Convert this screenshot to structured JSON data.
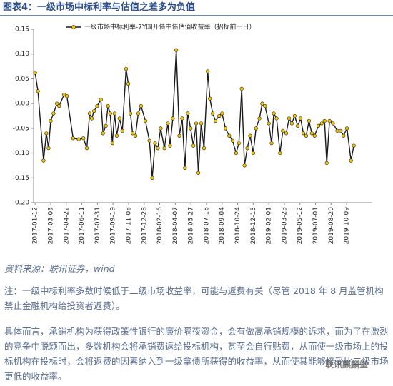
{
  "header": {
    "title": "图表4：一级市场中标利率与估值之差多为负值"
  },
  "chart_data": {
    "type": "line",
    "series": [
      {
        "name": "一级市场中标利率-7Y国开债中债估值收益率（招标前一日）",
        "color": "#1a1a1a",
        "marker_color": "#f5c400",
        "values": [
          0.062,
          0.025,
          -0.115,
          -0.06,
          -0.09,
          -0.035,
          -0.02,
          0.0,
          -0.005,
          0.018,
          0.015,
          -0.07,
          -0.072,
          -0.07,
          -0.09,
          -0.02,
          -0.03,
          -0.015,
          -0.005,
          0.008,
          -0.06,
          -0.045,
          -0.005,
          -0.02,
          -0.08,
          -0.02,
          -0.065,
          -0.03,
          -0.055,
          0.07,
          0.04,
          -0.02,
          -0.06,
          -0.065,
          -0.02,
          -0.005,
          -0.035,
          -0.075,
          -0.15,
          -0.08,
          -0.09,
          -0.05,
          -0.09,
          -0.04,
          -0.085,
          -0.03,
          0.108,
          -0.065,
          -0.03,
          -0.13,
          -0.02,
          -0.05,
          -0.085,
          -0.04,
          -0.14,
          -0.04,
          -0.09,
          0.065,
          0.01,
          -0.02,
          -0.035,
          -0.025,
          -0.02,
          -0.05,
          -0.065,
          -0.075,
          -0.1,
          -0.08,
          0.03,
          -0.125,
          -0.09,
          -0.065,
          -0.1,
          -0.05,
          -0.03,
          0.0,
          -0.005,
          -0.04,
          -0.08,
          -0.02,
          -0.03,
          -0.1,
          -0.055,
          -0.06,
          -0.03,
          -0.04,
          -0.025,
          -0.045,
          -0.03,
          -0.06,
          -0.065,
          -0.035,
          -0.06,
          -0.065,
          -0.045,
          -0.04,
          -0.035,
          -0.12,
          -0.035,
          -0.04,
          -0.055,
          -0.055,
          -0.065,
          -0.05,
          -0.115,
          -0.085
        ]
      }
    ],
    "x": [
      "2017-01-12",
      "2017-01-21",
      "2017-02-08",
      "2017-02-17",
      "2017-02-24",
      "2017-03-03",
      "2017-03-12",
      "2017-03-23",
      "2017-03-30",
      "2017-04-15",
      "2017-04-24",
      "2017-05-14",
      "2017-06-01",
      "2017-06-16",
      "2017-06-27",
      "2017-07-06",
      "2017-07-13",
      "2017-07-20",
      "2017-07-30",
      "2017-08-11",
      "2017-08-18",
      "2017-08-27",
      "2017-09-03",
      "2017-09-10",
      "2017-09-17",
      "2017-09-24",
      "2017-10-01",
      "2017-10-10",
      "2017-10-19",
      "2017-10-31",
      "2017-11-07",
      "2017-11-14",
      "2017-11-21",
      "2017-11-30",
      "2017-12-09",
      "2017-12-18",
      "2018-01-01",
      "2018-01-14",
      "2018-01-23",
      "2018-02-01",
      "2018-02-10",
      "2018-02-19",
      "2018-03-03",
      "2018-03-14",
      "2018-03-21",
      "2018-03-30",
      "2018-04-10",
      "2018-04-20",
      "2018-04-29",
      "2018-05-08",
      "2018-05-17",
      "2018-05-26",
      "2018-06-04",
      "2018-06-13",
      "2018-06-20",
      "2018-06-29",
      "2018-07-08",
      "2018-07-20",
      "2018-07-27",
      "2018-08-05",
      "2018-08-14",
      "2018-08-26",
      "2018-09-04",
      "2018-09-15",
      "2018-09-27",
      "2018-10-08",
      "2018-10-19",
      "2018-10-28",
      "2018-11-06",
      "2018-11-15",
      "2018-11-24",
      "2018-12-03",
      "2018-12-13",
      "2018-12-22",
      "2019-01-02",
      "2019-01-11",
      "2019-01-20",
      "2019-02-01",
      "2019-02-10",
      "2019-02-17",
      "2019-02-26",
      "2019-03-09",
      "2019-03-18",
      "2019-03-29",
      "2019-04-07",
      "2019-04-16",
      "2019-04-25",
      "2019-05-05",
      "2019-05-14",
      "2019-05-23",
      "2019-06-01",
      "2019-06-10",
      "2019-06-19",
      "2019-06-28",
      "2019-07-10",
      "2019-07-21",
      "2019-07-30",
      "2019-08-06",
      "2019-08-15",
      "2019-08-26",
      "2019-09-09",
      "2019-09-20",
      "2019-09-29",
      "2019-10-10",
      "2019-10-23",
      "2019-11-01"
    ],
    "xlim": [
      "2017-01-07",
      "2019-12-28"
    ],
    "xticks": [
      "2017-01-12",
      "2017-03-03",
      "2017-04-22",
      "2017-06-11",
      "2017-07-31",
      "2017-09-19",
      "2017-11-08",
      "2017-12-28",
      "2018-02-16",
      "2018-04-07",
      "2018-05-27",
      "2018-07-16",
      "2018-09-04",
      "2018-10-24",
      "2018-12-13",
      "2019-02-01",
      "2019-03-23",
      "2019-05-12",
      "2019-07-01",
      "2019-08-20",
      "2019-10-09"
    ],
    "ylim": [
      -0.2,
      0.15
    ],
    "yticks": [
      0.15,
      {
        "value": 0.1,
        "label": "0.10"
      },
      0.05,
      {
        "value": 0,
        "label": "0.00"
      },
      -0.05,
      {
        "value": -0.1,
        "label": "-0.10"
      },
      -0.15,
      {
        "value": -0.2,
        "label": "-0.20"
      }
    ],
    "grid": false,
    "legend": "top"
  },
  "source": "资料来源：联讯证券，wind",
  "note": "注：一级中标利率多数时候低于二级市场收益率，可能与返费有关（尽管 2018 年 8 月监管机构禁止金融机构给投资者返费）。",
  "body": "具体而言，承销机构为获得政策性银行的廉价隔夜资金，会有做高承销规模的诉求，而为了在激烈的竞争中脱颖而出，多数机构会将承销费返给投标机构，甚至会自行贴费，从而使一级市场上的投标机构在投标时，会将返费的因素纳入到一级拿债所获得的收益率，从而使其能够接受比二级市场更低的收益率。",
  "watermark": "联讯麒麟堂"
}
